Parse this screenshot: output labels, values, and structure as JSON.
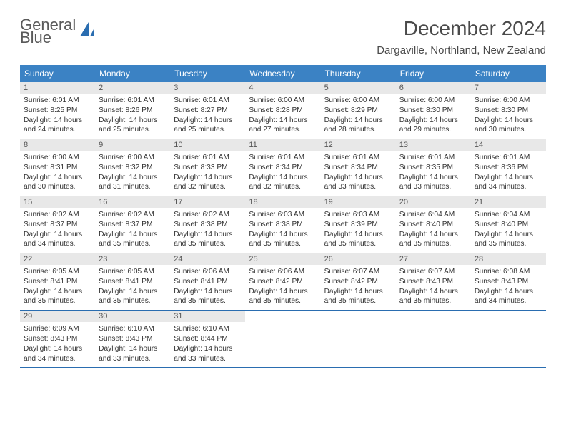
{
  "brand": {
    "name_top": "General",
    "name_bottom": "Blue"
  },
  "title": "December 2024",
  "location": "Dargaville, Northland, New Zealand",
  "colors": {
    "header_bg": "#3b82c4",
    "header_text": "#ffffff",
    "daynum_bg": "#e8e8e8",
    "week_divider": "#2a6db0",
    "brand_gray": "#5a5a5a",
    "brand_blue": "#2a6db0",
    "body_text": "#333333"
  },
  "weekdays": [
    "Sunday",
    "Monday",
    "Tuesday",
    "Wednesday",
    "Thursday",
    "Friday",
    "Saturday"
  ],
  "days": [
    {
      "n": 1,
      "sunrise": "6:01 AM",
      "sunset": "8:25 PM",
      "daylight": "14 hours and 24 minutes."
    },
    {
      "n": 2,
      "sunrise": "6:01 AM",
      "sunset": "8:26 PM",
      "daylight": "14 hours and 25 minutes."
    },
    {
      "n": 3,
      "sunrise": "6:01 AM",
      "sunset": "8:27 PM",
      "daylight": "14 hours and 25 minutes."
    },
    {
      "n": 4,
      "sunrise": "6:00 AM",
      "sunset": "8:28 PM",
      "daylight": "14 hours and 27 minutes."
    },
    {
      "n": 5,
      "sunrise": "6:00 AM",
      "sunset": "8:29 PM",
      "daylight": "14 hours and 28 minutes."
    },
    {
      "n": 6,
      "sunrise": "6:00 AM",
      "sunset": "8:30 PM",
      "daylight": "14 hours and 29 minutes."
    },
    {
      "n": 7,
      "sunrise": "6:00 AM",
      "sunset": "8:30 PM",
      "daylight": "14 hours and 30 minutes."
    },
    {
      "n": 8,
      "sunrise": "6:00 AM",
      "sunset": "8:31 PM",
      "daylight": "14 hours and 30 minutes."
    },
    {
      "n": 9,
      "sunrise": "6:00 AM",
      "sunset": "8:32 PM",
      "daylight": "14 hours and 31 minutes."
    },
    {
      "n": 10,
      "sunrise": "6:01 AM",
      "sunset": "8:33 PM",
      "daylight": "14 hours and 32 minutes."
    },
    {
      "n": 11,
      "sunrise": "6:01 AM",
      "sunset": "8:34 PM",
      "daylight": "14 hours and 32 minutes."
    },
    {
      "n": 12,
      "sunrise": "6:01 AM",
      "sunset": "8:34 PM",
      "daylight": "14 hours and 33 minutes."
    },
    {
      "n": 13,
      "sunrise": "6:01 AM",
      "sunset": "8:35 PM",
      "daylight": "14 hours and 33 minutes."
    },
    {
      "n": 14,
      "sunrise": "6:01 AM",
      "sunset": "8:36 PM",
      "daylight": "14 hours and 34 minutes."
    },
    {
      "n": 15,
      "sunrise": "6:02 AM",
      "sunset": "8:37 PM",
      "daylight": "14 hours and 34 minutes."
    },
    {
      "n": 16,
      "sunrise": "6:02 AM",
      "sunset": "8:37 PM",
      "daylight": "14 hours and 35 minutes."
    },
    {
      "n": 17,
      "sunrise": "6:02 AM",
      "sunset": "8:38 PM",
      "daylight": "14 hours and 35 minutes."
    },
    {
      "n": 18,
      "sunrise": "6:03 AM",
      "sunset": "8:38 PM",
      "daylight": "14 hours and 35 minutes."
    },
    {
      "n": 19,
      "sunrise": "6:03 AM",
      "sunset": "8:39 PM",
      "daylight": "14 hours and 35 minutes."
    },
    {
      "n": 20,
      "sunrise": "6:04 AM",
      "sunset": "8:40 PM",
      "daylight": "14 hours and 35 minutes."
    },
    {
      "n": 21,
      "sunrise": "6:04 AM",
      "sunset": "8:40 PM",
      "daylight": "14 hours and 35 minutes."
    },
    {
      "n": 22,
      "sunrise": "6:05 AM",
      "sunset": "8:41 PM",
      "daylight": "14 hours and 35 minutes."
    },
    {
      "n": 23,
      "sunrise": "6:05 AM",
      "sunset": "8:41 PM",
      "daylight": "14 hours and 35 minutes."
    },
    {
      "n": 24,
      "sunrise": "6:06 AM",
      "sunset": "8:41 PM",
      "daylight": "14 hours and 35 minutes."
    },
    {
      "n": 25,
      "sunrise": "6:06 AM",
      "sunset": "8:42 PM",
      "daylight": "14 hours and 35 minutes."
    },
    {
      "n": 26,
      "sunrise": "6:07 AM",
      "sunset": "8:42 PM",
      "daylight": "14 hours and 35 minutes."
    },
    {
      "n": 27,
      "sunrise": "6:07 AM",
      "sunset": "8:43 PM",
      "daylight": "14 hours and 35 minutes."
    },
    {
      "n": 28,
      "sunrise": "6:08 AM",
      "sunset": "8:43 PM",
      "daylight": "14 hours and 34 minutes."
    },
    {
      "n": 29,
      "sunrise": "6:09 AM",
      "sunset": "8:43 PM",
      "daylight": "14 hours and 34 minutes."
    },
    {
      "n": 30,
      "sunrise": "6:10 AM",
      "sunset": "8:43 PM",
      "daylight": "14 hours and 33 minutes."
    },
    {
      "n": 31,
      "sunrise": "6:10 AM",
      "sunset": "8:44 PM",
      "daylight": "14 hours and 33 minutes."
    }
  ],
  "labels": {
    "sunrise": "Sunrise:",
    "sunset": "Sunset:",
    "daylight": "Daylight:"
  },
  "layout": {
    "columns": 7,
    "start_offset": 0,
    "trailing_empty": 4
  }
}
